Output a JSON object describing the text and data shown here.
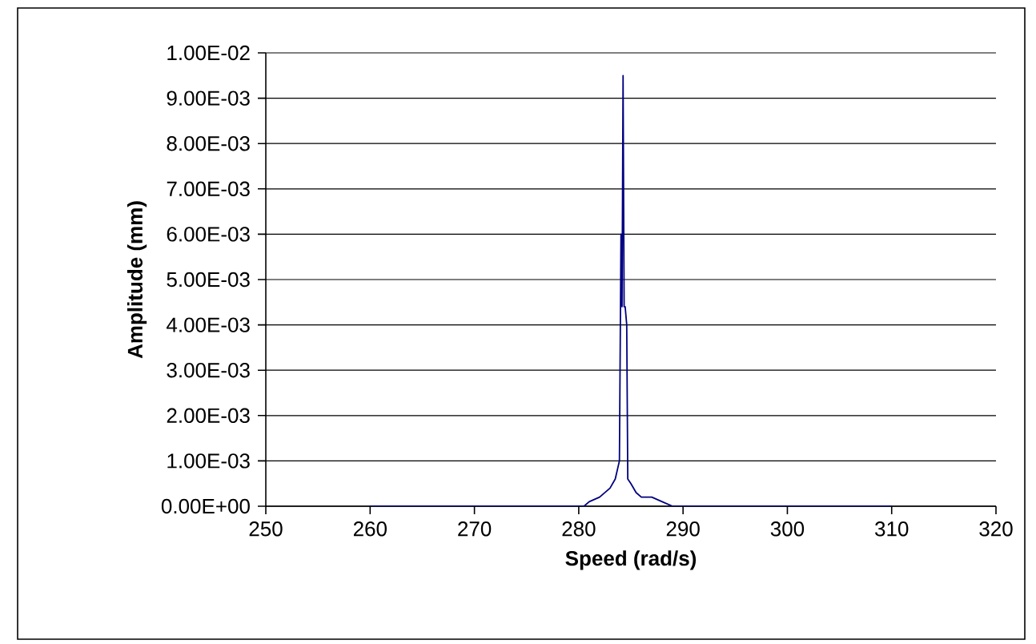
{
  "chart_data": {
    "type": "line",
    "xlabel": "Speed (rad/s)",
    "ylabel": "Amplitude (mm)",
    "x": [
      260,
      270,
      280,
      280.5,
      281,
      282,
      283,
      283.5,
      283.9,
      284.05,
      284.1,
      284.15,
      284.25,
      284.35,
      284.45,
      284.6,
      284.7,
      285,
      285.5,
      286,
      287,
      288,
      289,
      295,
      300,
      310
    ],
    "series": [
      {
        "color": "#000080",
        "values": [
          0,
          0,
          0,
          0,
          0.0001,
          0.0002,
          0.0004,
          0.0006,
          0.001,
          0.006,
          0.0045,
          0.0044,
          0.0095,
          0.0044,
          0.0044,
          0.004,
          0.0006,
          0.0005,
          0.0003,
          0.0002,
          0.0002,
          0.0001,
          0,
          0,
          0,
          0
        ]
      }
    ],
    "xlim": [
      250,
      320
    ],
    "xticks": [
      250,
      260,
      270,
      280,
      290,
      300,
      310,
      320
    ],
    "ylim": [
      0,
      0.01
    ],
    "yticks": [
      {
        "value": 0,
        "label": "0.00E+00"
      },
      {
        "value": 0.001,
        "label": "1.00E-03"
      },
      {
        "value": 0.002,
        "label": "2.00E-03"
      },
      {
        "value": 0.003,
        "label": "3.00E-03"
      },
      {
        "value": 0.004,
        "label": "4.00E-03"
      },
      {
        "value": 0.005,
        "label": "5.00E-03"
      },
      {
        "value": 0.006,
        "label": "6.00E-03"
      },
      {
        "value": 0.007,
        "label": "7.00E-03"
      },
      {
        "value": 0.008,
        "label": "8.00E-03"
      },
      {
        "value": 0.009,
        "label": "9.00E-03"
      },
      {
        "value": 0.01,
        "label": "1.00E-02"
      }
    ],
    "grid": "y",
    "marker": "none",
    "line_style": "solid"
  }
}
